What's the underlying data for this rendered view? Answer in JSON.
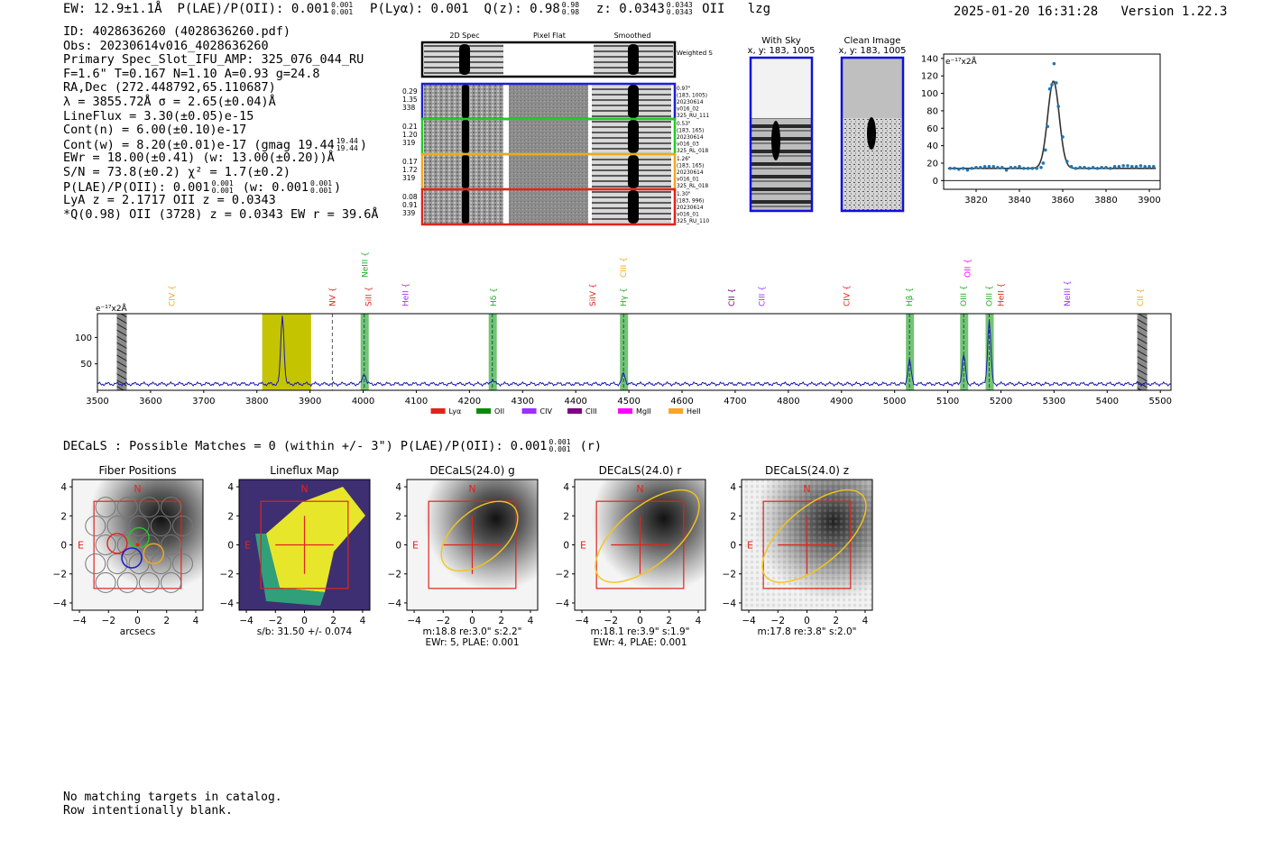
{
  "header": {
    "ew_label": "EW:",
    "ew_value": "12.9±1.1Å",
    "plae_label": "P(LAE)/P(OII):",
    "plae_value": "0.001",
    "plae_hi": "0.001",
    "plae_lo": "0.001",
    "plya_label": "P(Lyα):",
    "plya_value": "0.001",
    "qz_label": "Q(z):",
    "qz_value": "0.98",
    "qz_hi": "0.98",
    "qz_lo": "0.98",
    "z_label": "z:",
    "z_value": "0.0343",
    "z_hi": "0.0343",
    "z_lo": "0.0343",
    "line_name": "OII",
    "flag": "lzg",
    "datetime": "2025-01-20 16:31:28",
    "version": "Version 1.22.3"
  },
  "info": {
    "id": "ID: 4028636260 (4028636260.pdf)",
    "obs": "Obs: 20230614v016_4028636260",
    "primary": "Primary Spec_Slot_IFU_AMP: 325_076_044_RU",
    "fit": "F=1.6\"  T=0.167  N=1.10  A=0.93  g=24.8",
    "radec": "RA,Dec (272.448792,65.110687)",
    "lambda": "λ = 3855.72Å  σ = 2.65(±0.04)Å",
    "lineflux": "LineFlux = 3.30(±0.05)e-15",
    "contn": "Cont(n) = 6.00(±0.10)e-17",
    "contw": "Cont(w) = 8.20(±0.01)e-17 (gmag 19.44",
    "contw_hi": "19.44",
    "contw_lo": "19.44",
    "contw_end": ")",
    "ewr": "EWr = 18.00(±0.41) (w: 13.00(±0.20))Å",
    "sn": "S/N = 73.8(±0.2)  χ² = 1.7(±0.2)",
    "plae": "P(LAE)/P(OII): 0.001",
    "plae_hi": "0.001",
    "plae_lo": "0.001",
    "plae_w": "(w: 0.001",
    "plae_w_hi": "0.001",
    "plae_w_lo": "0.001",
    "plae_end": ")",
    "lya": "LyA z = 2.1717  OII z = 0.0343",
    "q": "*Q(0.98) OII (3728) z = 0.0343  EW r = 39.6Å"
  },
  "cutouts": {
    "col_labels": [
      "2D Spec",
      "Pixel Flat",
      "Smoothed"
    ],
    "weighted_label": "Weighted Sum",
    "rows": [
      {
        "stats": [
          "0.29",
          "1.35",
          "338"
        ],
        "info": [
          "0.97\"",
          "(183, 1005)",
          "20230614",
          "v016_02",
          "325_RU_111"
        ],
        "color": "#1f1fcf"
      },
      {
        "stats": [
          "0.21",
          "1.20",
          "319"
        ],
        "info": [
          "0.53\"",
          "(183, 165)",
          "20230614",
          "v016_03",
          "325_RL_018"
        ],
        "color": "#22cc22"
      },
      {
        "stats": [
          "0.17",
          "1.72",
          "319"
        ],
        "info": [
          "1.26\"",
          "(183, 165)",
          "20230614",
          "v016_01",
          "325_RL_018"
        ],
        "color": "#f5a623"
      },
      {
        "stats": [
          "0.08",
          "0.91",
          "339"
        ],
        "info": [
          "1.30\"",
          "(183, 996)",
          "20230614",
          "v016_01",
          "325_RU_110"
        ],
        "color": "#e0241b"
      }
    ],
    "with_sky_title": "With Sky",
    "with_sky_xy": "x, y: 183, 1005",
    "clean_title": "Clean Image",
    "clean_xy": "x, y: 183, 1005"
  },
  "zoom_chart": {
    "type": "scatter",
    "ylabel": "e⁻¹⁷x2Å",
    "xlim": [
      3805,
      3905
    ],
    "ylim": [
      -10,
      145
    ],
    "xticks": [
      3820,
      3840,
      3860,
      3880,
      3900
    ],
    "yticks": [
      0,
      20,
      40,
      60,
      80,
      100,
      120,
      140
    ],
    "points_x": [
      3808,
      3810,
      3812,
      3814,
      3816,
      3818,
      3820,
      3822,
      3824,
      3826,
      3828,
      3830,
      3832,
      3834,
      3836,
      3838,
      3840,
      3842,
      3844,
      3846,
      3848,
      3850,
      3851,
      3852,
      3853,
      3854,
      3855,
      3856,
      3857,
      3858,
      3860,
      3862,
      3864,
      3866,
      3868,
      3870,
      3872,
      3874,
      3876,
      3878,
      3880,
      3882,
      3884,
      3886,
      3888,
      3890,
      3892,
      3894,
      3896,
      3898,
      3900,
      3902
    ],
    "points_y": [
      14,
      14,
      13,
      14,
      12,
      14,
      15,
      15,
      16,
      16,
      16,
      15,
      15,
      12,
      15,
      15,
      16,
      14,
      14,
      14,
      14,
      15,
      20,
      35,
      62,
      105,
      110,
      134,
      112,
      85,
      50,
      22,
      16,
      14,
      15,
      15,
      14,
      15,
      14,
      15,
      15,
      14,
      16,
      16,
      17,
      17,
      16,
      16,
      17,
      16,
      16,
      16
    ],
    "fit_center": 3855.72,
    "fit_sigma": 2.65,
    "fit_amp": 100,
    "fit_base": 14
  },
  "full_spectrum": {
    "type": "line",
    "ylabel": "e⁻¹⁷x2Å",
    "xlim": [
      3500,
      5520
    ],
    "ylim": [
      0,
      145
    ],
    "xticks": [
      3500,
      3600,
      3700,
      3800,
      3900,
      4000,
      4100,
      4200,
      4300,
      4400,
      4500,
      4600,
      4700,
      4800,
      4900,
      5000,
      5100,
      5200,
      5300,
      5400,
      5500
    ],
    "yticks": [
      50,
      100
    ],
    "lines": [
      {
        "x": 3848,
        "amp": 130,
        "sigma": 3
      },
      {
        "x": 4002,
        "amp": 20,
        "sigma": 3
      },
      {
        "x": 4243,
        "amp": 8,
        "sigma": 3
      },
      {
        "x": 4490,
        "amp": 20,
        "sigma": 3
      },
      {
        "x": 5028,
        "amp": 45,
        "sigma": 3
      },
      {
        "x": 5130,
        "amp": 55,
        "sigma": 3
      },
      {
        "x": 5178,
        "amp": 120,
        "sigma": 3
      }
    ],
    "green_bands": [
      4002,
      4243,
      4490,
      5028,
      5130,
      5178
    ],
    "hatched_bands": [
      3545,
      5465
    ],
    "yellow_band": [
      3810,
      3902
    ],
    "dashed_lines": [
      3942
    ],
    "labels": [
      {
        "text": "CIV",
        "x": 3640,
        "color": "#f5a623",
        "row": 1
      },
      {
        "text": "NV",
        "x": 3942,
        "color": "#e0241b",
        "row": 1
      },
      {
        "text": "SiII",
        "x": 4010,
        "color": "#e0241b",
        "row": 1
      },
      {
        "text": "NeIII",
        "x": 4003,
        "color": "#22aa22",
        "row": 0
      },
      {
        "text": "HeII",
        "x": 4080,
        "color": "#9b30ff",
        "row": 1
      },
      {
        "text": "Hδ",
        "x": 4245,
        "color": "#22aa22",
        "row": 1
      },
      {
        "text": "SiIV",
        "x": 4432,
        "color": "#e0241b",
        "row": 1
      },
      {
        "text": "CIII",
        "x": 4490,
        "color": "#f5a623",
        "row": 0
      },
      {
        "text": "Hγ",
        "x": 4490,
        "color": "#22aa22",
        "row": 1
      },
      {
        "text": "CII",
        "x": 4693,
        "color": "#800080",
        "row": 1
      },
      {
        "text": "CIII",
        "x": 4750,
        "color": "#9b30ff",
        "row": 1
      },
      {
        "text": "CIV",
        "x": 4910,
        "color": "#e0241b",
        "row": 1
      },
      {
        "text": "Hβ",
        "x": 5028,
        "color": "#22aa22",
        "row": 1
      },
      {
        "text": "OII",
        "x": 5137,
        "color": "#ff00ff",
        "row": 0
      },
      {
        "text": "OIII",
        "x": 5130,
        "color": "#22aa22",
        "row": 1
      },
      {
        "text": "OIII",
        "x": 5178,
        "color": "#22aa22",
        "row": 1
      },
      {
        "text": "HeII",
        "x": 5200,
        "color": "#e0241b",
        "row": 1
      },
      {
        "text": "NeIII",
        "x": 5325,
        "color": "#9b30ff",
        "row": 1
      },
      {
        "text": "CII",
        "x": 5462,
        "color": "#f5a623",
        "row": 1
      }
    ],
    "legend": [
      {
        "name": "Lyα",
        "color": "#e0241b"
      },
      {
        "name": "OII",
        "color": "#0a8a0a"
      },
      {
        "name": "CIV",
        "color": "#9b30ff"
      },
      {
        "name": "CIII",
        "color": "#800080"
      },
      {
        "name": "MgII",
        "color": "#ff00ff"
      },
      {
        "name": "HeII",
        "color": "#f5a623"
      }
    ]
  },
  "decals": {
    "line": "DECaLS : Possible Matches = 0 (within +/- 3\")  P(LAE)/P(OII): 0.001",
    "plae_hi": "0.001",
    "plae_lo": "0.001",
    "end": "(r)",
    "panels": [
      {
        "title": "Fiber Positions",
        "captions": [
          "arcsecs"
        ]
      },
      {
        "title": "Lineflux Map",
        "captions": [
          "s/b: 31.50 +/- 0.074"
        ]
      },
      {
        "title": "DECaLS(24.0) g",
        "captions": [
          "m:18.8  re:3.0\"  s:2.2\"",
          "EWr: 5, PLAE: 0.001"
        ]
      },
      {
        "title": "DECaLS(24.0) r",
        "captions": [
          "m:18.1  re:3.9\"  s:1.9\"",
          "EWr: 4, PLAE: 0.001"
        ]
      },
      {
        "title": "DECaLS(24.0) z",
        "captions": [
          "m:17.8  re:3.8\"  s:2.0\""
        ]
      }
    ],
    "ticks": [
      "−4",
      "−2",
      "0",
      "2",
      "4"
    ],
    "north": "N",
    "east": "E"
  },
  "footer": {
    "line1": "No matching targets in catalog.",
    "line2": "Row intentionally blank."
  }
}
